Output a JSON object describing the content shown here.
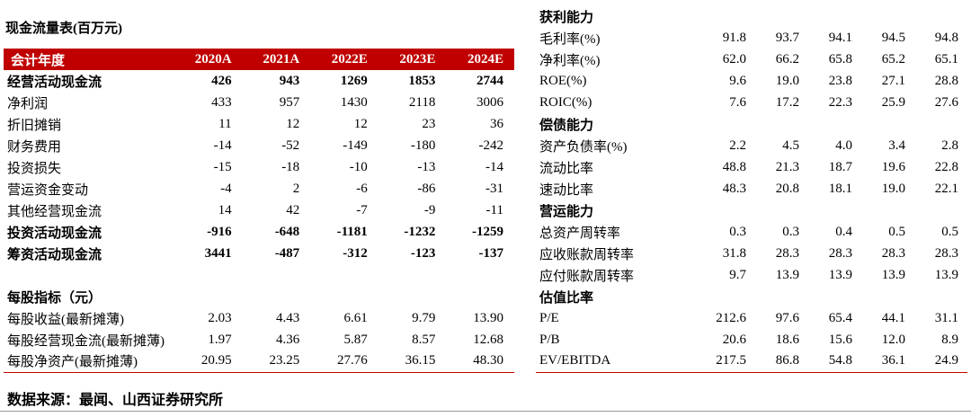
{
  "colors": {
    "header_bg": "#c00000",
    "header_text": "#ffffff",
    "rule": "#c00000"
  },
  "left_table": {
    "title": "现金流量表(百万元)",
    "header": [
      "会计年度",
      "2020A",
      "2021A",
      "2022E",
      "2023E",
      "2024E"
    ],
    "rows": [
      {
        "label": "经营活动现金流",
        "style": "total",
        "values": [
          "426",
          "943",
          "1269",
          "1853",
          "2744"
        ]
      },
      {
        "label": "净利润",
        "style": "item",
        "values": [
          "433",
          "957",
          "1430",
          "2118",
          "3006"
        ]
      },
      {
        "label": "折旧摊销",
        "style": "item",
        "values": [
          "11",
          "12",
          "12",
          "23",
          "36"
        ]
      },
      {
        "label": "财务费用",
        "style": "item",
        "values": [
          "-14",
          "-52",
          "-149",
          "-180",
          "-242"
        ]
      },
      {
        "label": "投资损失",
        "style": "item",
        "values": [
          "-15",
          "-18",
          "-10",
          "-13",
          "-14"
        ]
      },
      {
        "label": "营运资金变动",
        "style": "item",
        "values": [
          "-4",
          "2",
          "-6",
          "-86",
          "-31"
        ]
      },
      {
        "label": "其他经营现金流",
        "style": "item",
        "values": [
          "14",
          "42",
          "-7",
          "-9",
          "-11"
        ]
      },
      {
        "label": "投资活动现金流",
        "style": "total",
        "values": [
          "-916",
          "-648",
          "-1181",
          "-1232",
          "-1259"
        ]
      },
      {
        "label": "筹资活动现金流",
        "style": "total",
        "values": [
          "3441",
          "-487",
          "-312",
          "-123",
          "-137"
        ]
      },
      {
        "label": "",
        "style": "spacer",
        "values": [
          "",
          "",
          "",
          "",
          ""
        ]
      },
      {
        "label": "每股指标（元）",
        "style": "section",
        "values": [
          "",
          "",
          "",
          "",
          ""
        ]
      },
      {
        "label": "每股收益(最新摊薄)",
        "style": "normal",
        "values": [
          "2.03",
          "4.43",
          "6.61",
          "9.79",
          "13.90"
        ]
      },
      {
        "label": "每股经营现金流(最新摊薄)",
        "style": "normal",
        "values": [
          "1.97",
          "4.36",
          "5.87",
          "8.57",
          "12.68"
        ]
      },
      {
        "label": "每股净资产(最新摊薄)",
        "style": "normal",
        "values": [
          "20.95",
          "23.25",
          "27.76",
          "36.15",
          "48.30"
        ]
      }
    ]
  },
  "right_table": {
    "rows": [
      {
        "label": "获利能力",
        "style": "section",
        "values": [
          "",
          "",
          "",
          "",
          ""
        ]
      },
      {
        "label": "毛利率(%)",
        "style": "normal",
        "values": [
          "91.8",
          "93.7",
          "94.1",
          "94.5",
          "94.8"
        ]
      },
      {
        "label": "净利率(%)",
        "style": "normal",
        "values": [
          "62.0",
          "66.2",
          "65.8",
          "65.2",
          "65.1"
        ]
      },
      {
        "label": "ROE(%)",
        "style": "normal",
        "values": [
          "9.6",
          "19.0",
          "23.8",
          "27.1",
          "28.8"
        ]
      },
      {
        "label": "ROIC(%)",
        "style": "normal",
        "values": [
          "7.6",
          "17.2",
          "22.3",
          "25.9",
          "27.6"
        ]
      },
      {
        "label": "偿债能力",
        "style": "section",
        "values": [
          "",
          "",
          "",
          "",
          ""
        ]
      },
      {
        "label": "资产负债率(%)",
        "style": "normal",
        "values": [
          "2.2",
          "4.5",
          "4.0",
          "3.4",
          "2.8"
        ]
      },
      {
        "label": "流动比率",
        "style": "normal",
        "values": [
          "48.8",
          "21.3",
          "18.7",
          "19.6",
          "22.8"
        ]
      },
      {
        "label": "速动比率",
        "style": "normal",
        "values": [
          "48.3",
          "20.8",
          "18.1",
          "19.0",
          "22.1"
        ]
      },
      {
        "label": "营运能力",
        "style": "section",
        "values": [
          "",
          "",
          "",
          "",
          ""
        ]
      },
      {
        "label": "总资产周转率",
        "style": "normal",
        "values": [
          "0.3",
          "0.3",
          "0.4",
          "0.5",
          "0.5"
        ]
      },
      {
        "label": "应收账款周转率",
        "style": "normal",
        "values": [
          "31.8",
          "28.3",
          "28.3",
          "28.3",
          "28.3"
        ]
      },
      {
        "label": "应付账款周转率",
        "style": "normal",
        "values": [
          "9.7",
          "13.9",
          "13.9",
          "13.9",
          "13.9"
        ]
      },
      {
        "label": "估值比率",
        "style": "section",
        "values": [
          "",
          "",
          "",
          "",
          ""
        ]
      },
      {
        "label": "P/E",
        "style": "normal",
        "values": [
          "212.6",
          "97.6",
          "65.4",
          "44.1",
          "31.1"
        ]
      },
      {
        "label": "P/B",
        "style": "normal",
        "values": [
          "20.6",
          "18.6",
          "15.6",
          "12.0",
          "8.9"
        ]
      },
      {
        "label": "EV/EBITDA",
        "style": "normal",
        "values": [
          "217.5",
          "86.8",
          "54.8",
          "36.1",
          "24.9"
        ]
      }
    ]
  },
  "footer": {
    "source": "数据来源：最闻、山西证券研究所"
  }
}
